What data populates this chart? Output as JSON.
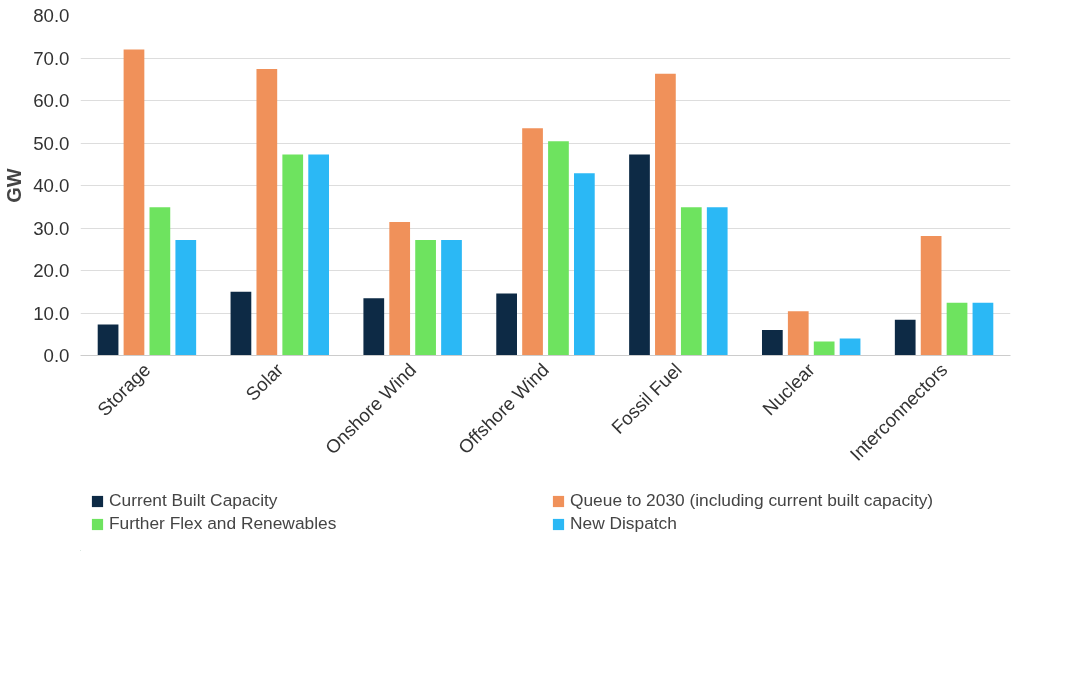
{
  "chart_data": {
    "type": "bar",
    "ylabel": "GW",
    "categories": [
      "Storage",
      "Solar",
      "Onshore Wind",
      "Offshore Wind",
      "Fossil Fuel",
      "Nuclear",
      "Interconnectors"
    ],
    "series": [
      {
        "name": "Current Built Capacity",
        "color": "#0d2a45",
        "values": [
          7.3,
          15.0,
          13.5,
          14.6,
          47.3,
          6.0,
          8.4
        ]
      },
      {
        "name": "Queue to 2030 (including current built capacity)",
        "color": "#f0915a",
        "values": [
          72.0,
          67.4,
          31.4,
          53.5,
          66.3,
          10.4,
          28.1
        ]
      },
      {
        "name": "Further Flex and Renewables",
        "color": "#6ee35f",
        "values": [
          34.9,
          47.3,
          27.2,
          50.4,
          34.9,
          3.3,
          12.4
        ]
      },
      {
        "name": "New Dispatch",
        "color": "#2bb8f5",
        "values": [
          27.2,
          47.3,
          27.2,
          42.9,
          34.9,
          4.0,
          12.4
        ]
      }
    ],
    "ylim": [
      0,
      80
    ],
    "yticks": [
      {
        "value": 0,
        "label": "0.0"
      },
      {
        "value": 10,
        "label": "10.0"
      },
      {
        "value": 20,
        "label": "20.0"
      },
      {
        "value": 30,
        "label": "30.0"
      },
      {
        "value": 40,
        "label": "40.0"
      },
      {
        "value": 50,
        "label": "50.0"
      },
      {
        "value": 60,
        "label": "60.0"
      },
      {
        "value": 70,
        "label": "70.0"
      },
      {
        "value": 80,
        "label": "80.0"
      }
    ],
    "grid": "y",
    "legend": "bottom"
  }
}
